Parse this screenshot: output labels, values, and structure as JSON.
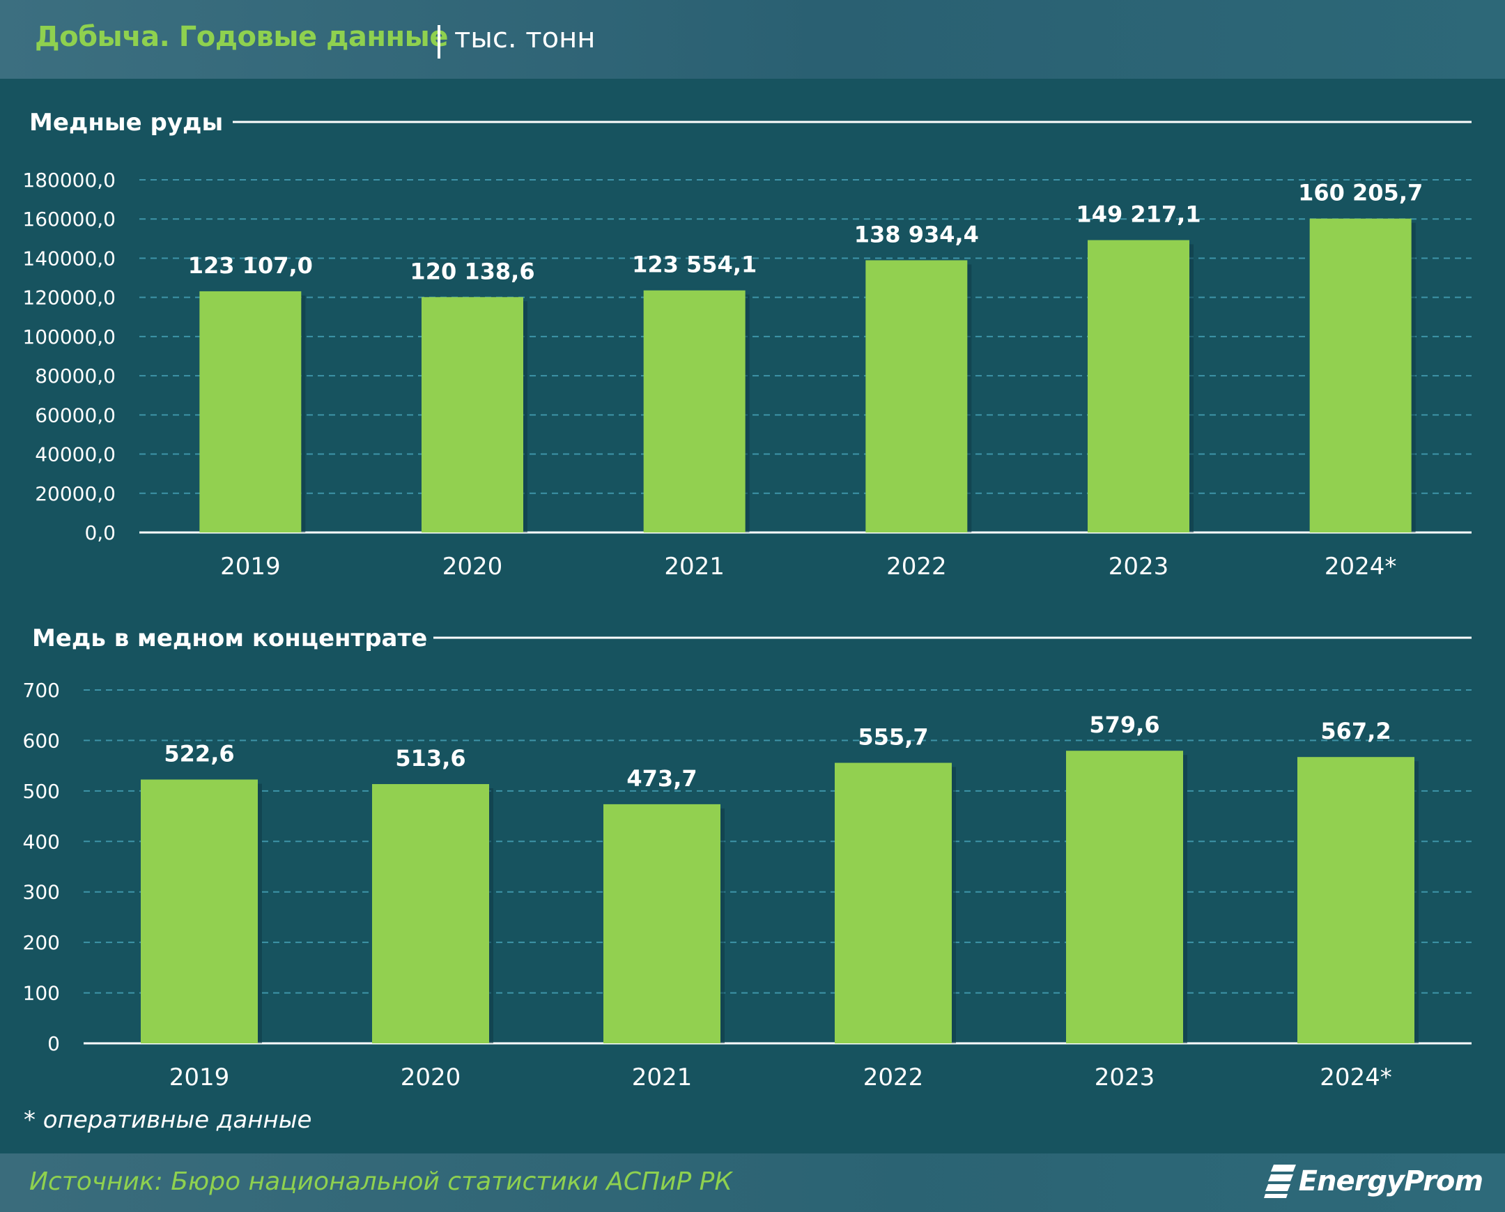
{
  "header": {
    "title": "Добыча. Годовые данные",
    "unit": "тыс. тонн"
  },
  "footnote": "* оперативные данные",
  "footer": {
    "source": "Источник: Бюро национальной статистики АСПиР РК",
    "logo": "EnergyProm"
  },
  "colors": {
    "bar": "#92d050",
    "background": "#17535f",
    "text": "#ffffff",
    "title_accent": "#8fd14f"
  },
  "chart_data": [
    {
      "type": "bar",
      "title": "Медные руды",
      "categories": [
        "2019",
        "2020",
        "2021",
        "2022",
        "2023",
        "2024*"
      ],
      "values": [
        123107.0,
        120138.6,
        123554.1,
        138934.4,
        149217.1,
        160205.7
      ],
      "value_labels": [
        "123 107,0",
        "120 138,6",
        "123 554,1",
        "138 934,4",
        "149 217,1",
        "160 205,7"
      ],
      "yticks": [
        "0,0",
        "20000,0",
        "40000,0",
        "60000,0",
        "80000,0",
        "100000,0",
        "120000,0",
        "140000,0",
        "160000,0",
        "180000,0"
      ],
      "ylim": [
        0,
        180000
      ],
      "ystep": 20000,
      "grid": true
    },
    {
      "type": "bar",
      "title": "Медь в медном концентрате",
      "categories": [
        "2019",
        "2020",
        "2021",
        "2022",
        "2023",
        "2024*"
      ],
      "values": [
        522.6,
        513.6,
        473.7,
        555.7,
        579.6,
        567.2
      ],
      "value_labels": [
        "522,6",
        "513,6",
        "473,7",
        "555,7",
        "579,6",
        "567,2"
      ],
      "yticks": [
        "0",
        "100",
        "200",
        "300",
        "400",
        "500",
        "600",
        "700"
      ],
      "ylim": [
        0,
        700
      ],
      "ystep": 100,
      "grid": true
    }
  ]
}
